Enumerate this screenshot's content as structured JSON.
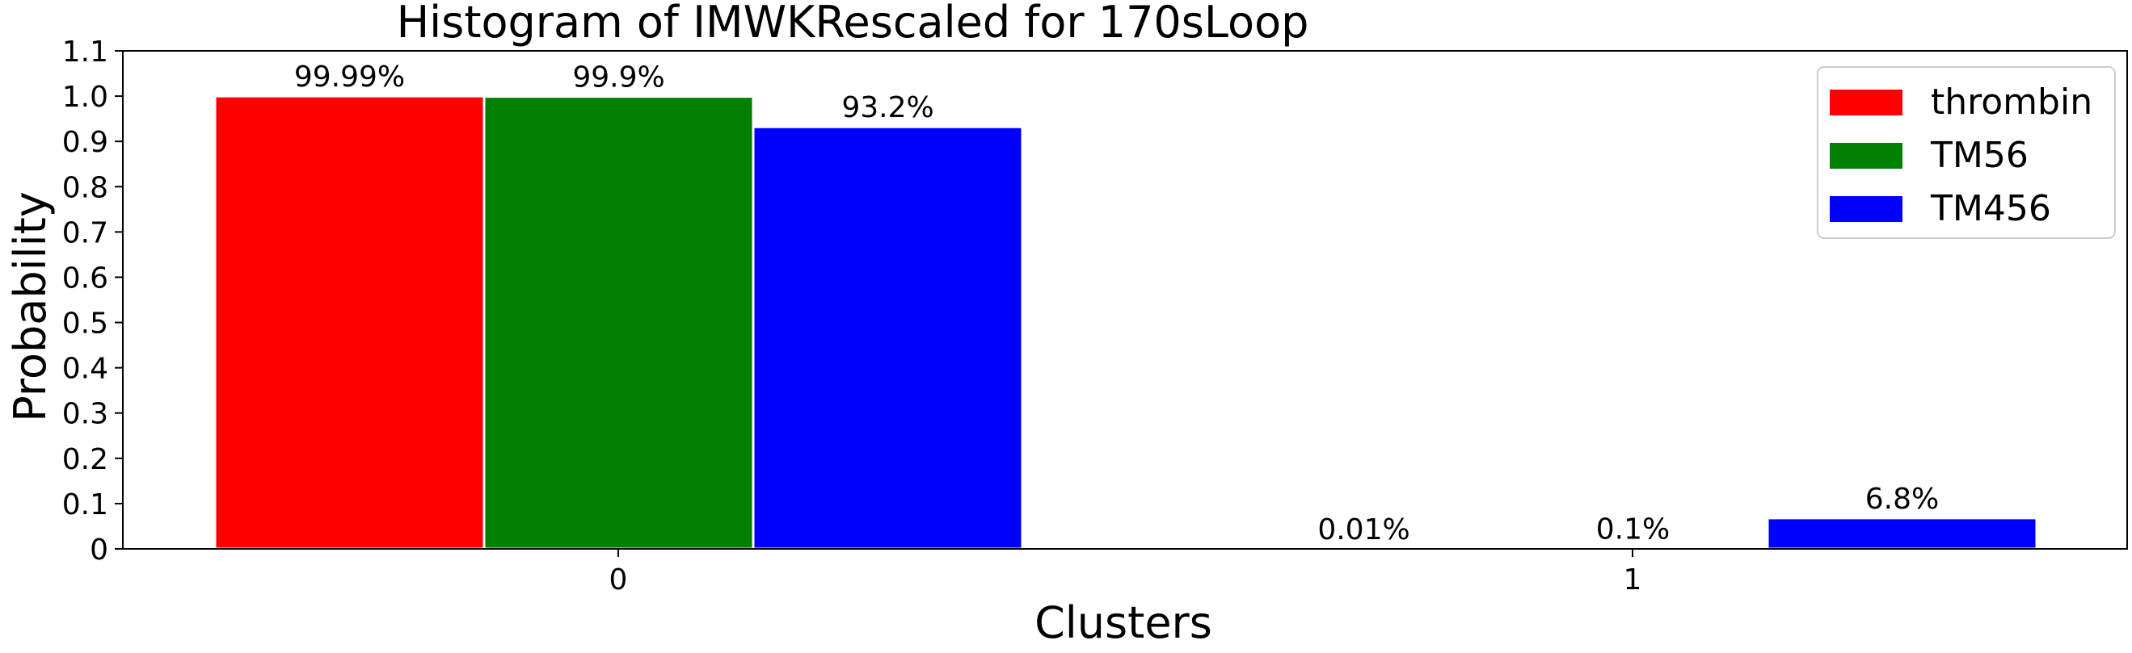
{
  "chart_data": {
    "type": "bar",
    "title": "Histogram of IMWKRescaled for 170sLoop",
    "xlabel": "Clusters",
    "ylabel": "Probability",
    "categories": [
      "0",
      "1"
    ],
    "ylim": [
      0,
      1.1
    ],
    "yticks": [
      "0",
      "0.1",
      "0.2",
      "0.3",
      "0.4",
      "0.5",
      "0.6",
      "0.7",
      "0.8",
      "0.9",
      "1.0",
      "1.1"
    ],
    "legend_position": "top-right",
    "grid": false,
    "series": [
      {
        "name": "thrombin",
        "color": "#ff0000",
        "values": [
          0.9999,
          0.0001
        ],
        "labels": [
          "99.99%",
          "0.01%"
        ]
      },
      {
        "name": "TM56",
        "color": "#008000",
        "values": [
          0.999,
          0.001
        ],
        "labels": [
          "99.9%",
          "0.1%"
        ]
      },
      {
        "name": "TM456",
        "color": "#0000ff",
        "values": [
          0.932,
          0.068
        ],
        "labels": [
          "93.2%",
          "6.8%"
        ]
      }
    ]
  }
}
